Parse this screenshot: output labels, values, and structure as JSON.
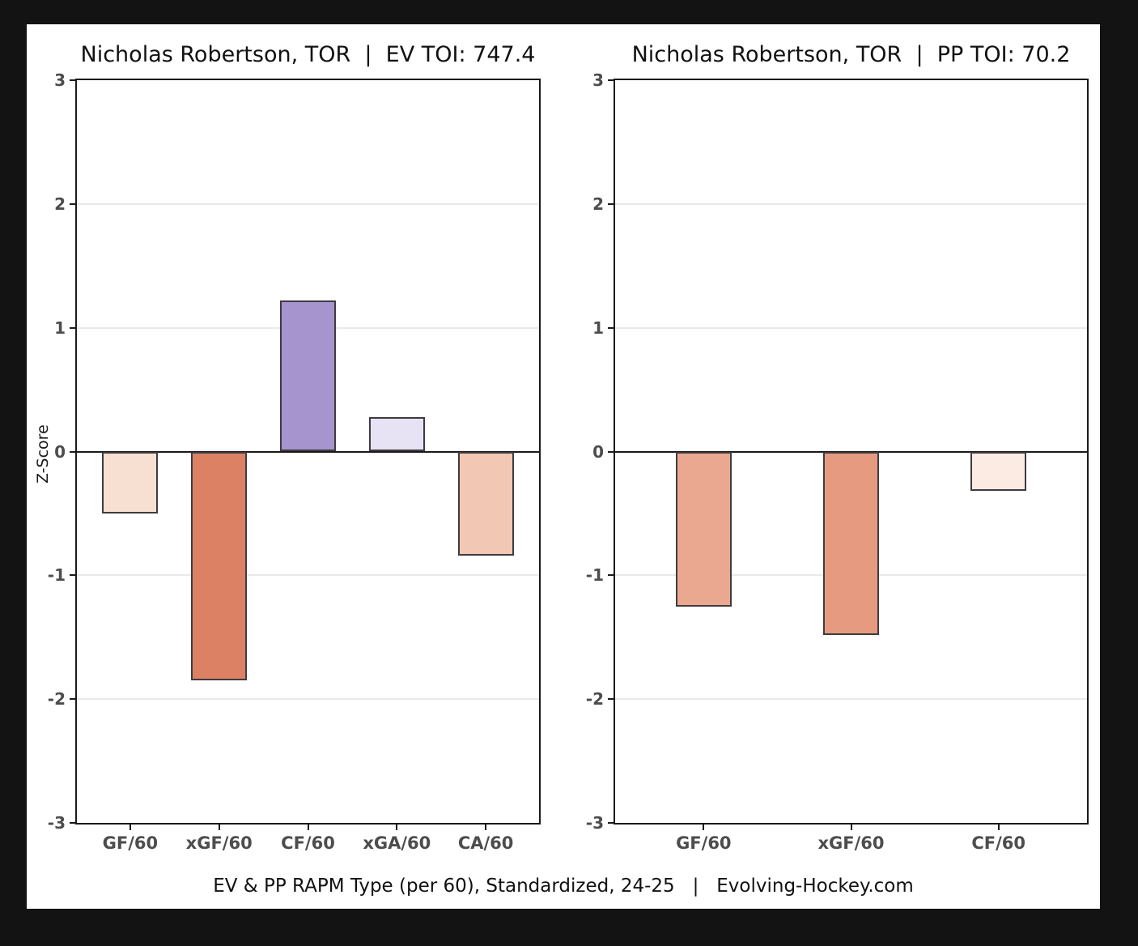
{
  "page": {
    "background_color": "#131313",
    "card_color": "#ffffff"
  },
  "caption": "EV & PP RAPM Type (per 60), Standardized, 24-25   |   Evolving-Hockey.com",
  "axis_style": {
    "tick_label_color": "#4d4d4d",
    "grid_color": "#e9e9e9",
    "border_color": "#1a1a1a",
    "bar_edge_color": "#3f3b40"
  },
  "chart_data": [
    {
      "type": "bar",
      "title": "Nicholas Robertson, TOR  |  EV TOI: 747.4",
      "player": "Nicholas Robertson",
      "team": "TOR",
      "strength": "EV",
      "toi": 747.4,
      "ylabel": "Z-Score",
      "ylim": [
        -3,
        3
      ],
      "yticks": [
        3,
        2,
        1,
        0,
        -1,
        -2,
        -3
      ],
      "grid": true,
      "legend": "none",
      "categories": [
        "GF/60",
        "xGF/60",
        "CF/60",
        "xGA/60",
        "CA/60"
      ],
      "values": [
        -0.5,
        -1.85,
        1.22,
        0.28,
        -0.84
      ],
      "bar_colors": [
        "#f7dfd2",
        "#dc8164",
        "#a594cd",
        "#e7e3f4",
        "#f2c7b3"
      ]
    },
    {
      "type": "bar",
      "title": "Nicholas Robertson, TOR  |  PP TOI: 70.2",
      "player": "Nicholas Robertson",
      "team": "TOR",
      "strength": "PP",
      "toi": 70.2,
      "ylabel": "",
      "ylim": [
        -3,
        3
      ],
      "yticks": [
        3,
        2,
        1,
        0,
        -1,
        -2,
        -3
      ],
      "grid": true,
      "legend": "none",
      "categories": [
        "GF/60",
        "xGF/60",
        "CF/60"
      ],
      "values": [
        -1.25,
        -1.48,
        -0.32
      ],
      "bar_colors": [
        "#eba891",
        "#e69b81",
        "#fbebe3"
      ]
    }
  ]
}
